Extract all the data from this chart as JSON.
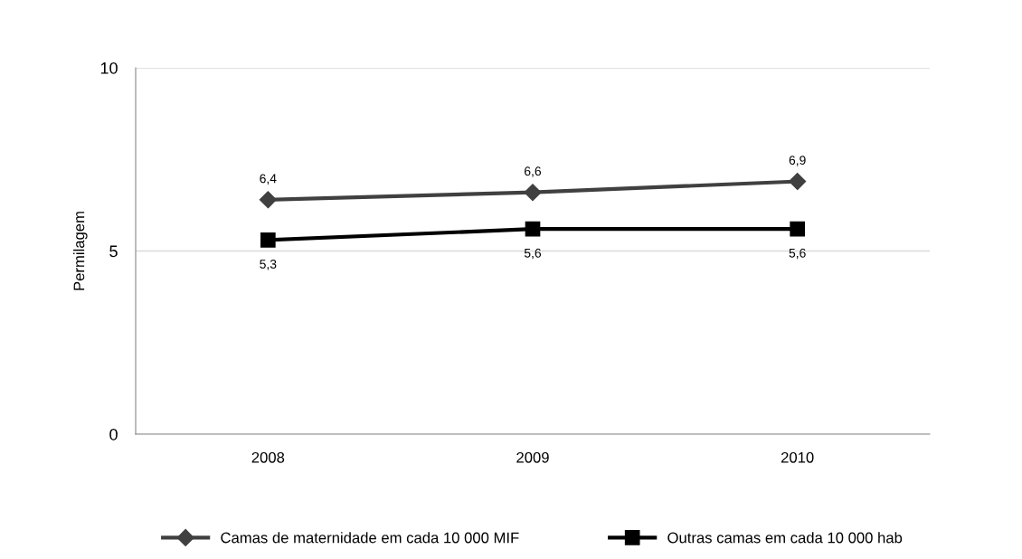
{
  "chart_data": {
    "type": "line",
    "ylabel": "Permilagem",
    "categories": [
      "2008",
      "2009",
      "2010"
    ],
    "series": [
      {
        "name": "Camas de maternidade em cada 10 000 MIF",
        "color": "#404040",
        "marker": "diamond",
        "values": [
          6.4,
          6.6,
          6.9
        ],
        "value_labels": [
          "6,4",
          "6,6",
          "6,9"
        ]
      },
      {
        "name": "Outras camas em cada 10 000 hab",
        "color": "#000000",
        "marker": "square",
        "values": [
          5.3,
          5.6,
          5.6
        ],
        "value_labels": [
          "5,3",
          "5,6",
          "5,6"
        ]
      }
    ],
    "ylim": [
      0,
      10
    ],
    "yticks": [
      0,
      5,
      10
    ],
    "grid": "y",
    "legend": "bottom",
    "line_style": "solid"
  }
}
